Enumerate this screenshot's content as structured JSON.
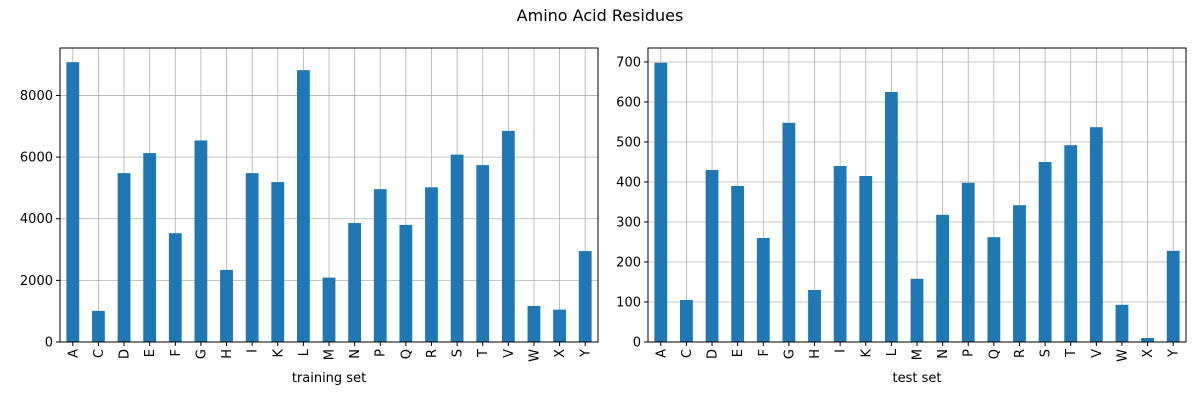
{
  "figure": {
    "title": "Amino Acid Residues"
  },
  "chart_data": [
    {
      "type": "bar",
      "title": "",
      "xlabel": "training set",
      "ylabel": "",
      "categories": [
        "A",
        "C",
        "D",
        "E",
        "F",
        "G",
        "H",
        "I",
        "K",
        "L",
        "M",
        "N",
        "P",
        "Q",
        "R",
        "S",
        "T",
        "V",
        "W",
        "X",
        "Y"
      ],
      "values": [
        9080,
        1010,
        5480,
        6130,
        3530,
        6540,
        2340,
        5480,
        5190,
        8820,
        2090,
        3860,
        4960,
        3800,
        5020,
        6080,
        5740,
        6850,
        1170,
        1050,
        2950
      ],
      "ylim": [
        0,
        9540
      ],
      "yticks": [
        0,
        2000,
        4000,
        6000,
        8000
      ],
      "grid": true,
      "color": "#1f77b4"
    },
    {
      "type": "bar",
      "title": "",
      "xlabel": "test set",
      "ylabel": "",
      "categories": [
        "A",
        "C",
        "D",
        "E",
        "F",
        "G",
        "H",
        "I",
        "K",
        "L",
        "M",
        "N",
        "P",
        "Q",
        "R",
        "S",
        "T",
        "V",
        "W",
        "X",
        "Y"
      ],
      "values": [
        698,
        105,
        430,
        390,
        260,
        548,
        130,
        440,
        415,
        625,
        158,
        318,
        398,
        262,
        342,
        450,
        492,
        537,
        93,
        10,
        228
      ],
      "ylim": [
        0,
        735
      ],
      "yticks": [
        0,
        100,
        200,
        300,
        400,
        500,
        600,
        700
      ],
      "grid": true,
      "color": "#1f77b4"
    }
  ]
}
